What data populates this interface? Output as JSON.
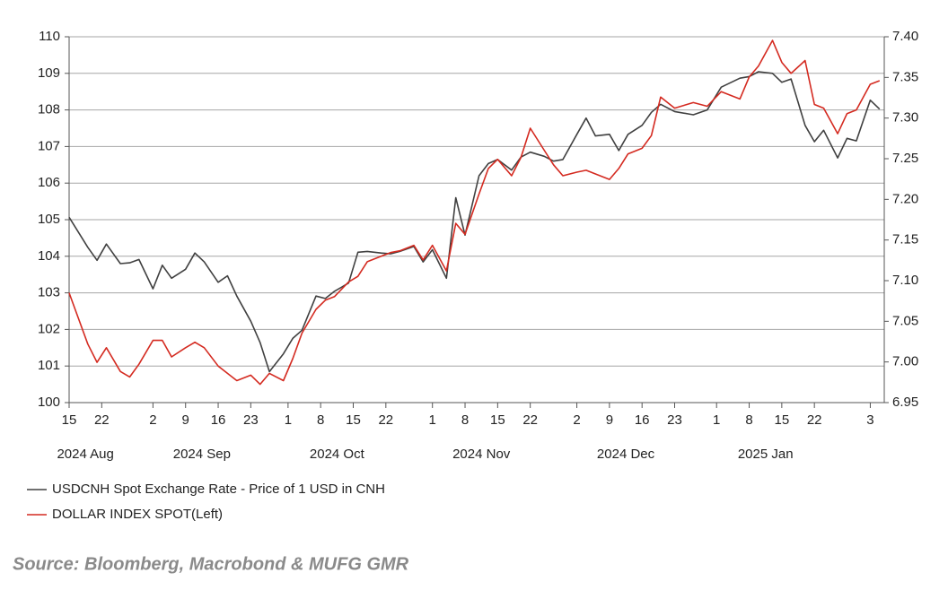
{
  "chart_data": {
    "type": "line",
    "x": [
      "2024-08-15",
      "2024-08-19",
      "2024-08-21",
      "2024-08-23",
      "2024-08-26",
      "2024-08-28",
      "2024-08-30",
      "2024-09-02",
      "2024-09-04",
      "2024-09-06",
      "2024-09-09",
      "2024-09-11",
      "2024-09-13",
      "2024-09-16",
      "2024-09-18",
      "2024-09-20",
      "2024-09-23",
      "2024-09-25",
      "2024-09-27",
      "2024-09-30",
      "2024-10-02",
      "2024-10-04",
      "2024-10-07",
      "2024-10-09",
      "2024-10-11",
      "2024-10-14",
      "2024-10-16",
      "2024-10-18",
      "2024-10-21",
      "2024-10-23",
      "2024-10-25",
      "2024-10-28",
      "2024-10-30",
      "2024-11-01",
      "2024-11-04",
      "2024-11-06",
      "2024-11-08",
      "2024-11-11",
      "2024-11-13",
      "2024-11-15",
      "2024-11-18",
      "2024-11-20",
      "2024-11-22",
      "2024-11-25",
      "2024-11-27",
      "2024-11-29",
      "2024-12-02",
      "2024-12-04",
      "2024-12-06",
      "2024-12-09",
      "2024-12-11",
      "2024-12-13",
      "2024-12-16",
      "2024-12-18",
      "2024-12-20",
      "2024-12-23",
      "2024-12-27",
      "2024-12-30",
      "2025-01-02",
      "2025-01-06",
      "2025-01-08",
      "2025-01-10",
      "2025-01-13",
      "2025-01-15",
      "2025-01-17",
      "2025-01-20",
      "2025-01-22",
      "2025-01-24",
      "2025-01-27",
      "2025-01-29",
      "2025-01-31",
      "2025-02-03",
      "2025-02-05"
    ],
    "series": [
      {
        "name": "USDCNH Spot Exchange Rate - Price of 1 USD in CNH",
        "color": "#404040",
        "axis": "y2",
        "values": [
          7.178,
          7.141,
          7.125,
          7.145,
          7.121,
          7.122,
          7.126,
          7.09,
          7.119,
          7.103,
          7.114,
          7.134,
          7.123,
          7.098,
          7.106,
          7.081,
          7.05,
          7.024,
          6.988,
          7.01,
          7.029,
          7.039,
          7.081,
          7.078,
          7.087,
          7.097,
          7.135,
          7.136,
          7.134,
          7.133,
          7.136,
          7.142,
          7.123,
          7.138,
          7.103,
          7.202,
          7.156,
          7.229,
          7.244,
          7.249,
          7.236,
          7.252,
          7.258,
          7.253,
          7.247,
          7.249,
          7.28,
          7.3,
          7.278,
          7.28,
          7.26,
          7.28,
          7.291,
          7.307,
          7.317,
          7.308,
          7.304,
          7.31,
          7.338,
          7.349,
          7.351,
          7.357,
          7.355,
          7.344,
          7.348,
          7.291,
          7.271,
          7.285,
          7.251,
          7.275,
          7.272,
          7.322,
          7.311
        ]
      },
      {
        "name": "DOLLAR INDEX SPOT(Left)",
        "color": "#d42a20",
        "values": [
          103.0,
          101.6,
          101.1,
          101.5,
          100.85,
          100.7,
          101.05,
          101.7,
          101.7,
          101.25,
          101.5,
          101.65,
          101.5,
          101.0,
          100.8,
          100.6,
          100.75,
          100.5,
          100.8,
          100.6,
          101.2,
          101.9,
          102.55,
          102.8,
          102.9,
          103.3,
          103.45,
          103.85,
          104.0,
          104.1,
          104.15,
          104.3,
          103.9,
          104.3,
          103.6,
          104.9,
          104.6,
          105.7,
          106.4,
          106.65,
          106.2,
          106.7,
          107.5,
          106.9,
          106.5,
          106.2,
          106.3,
          106.35,
          106.25,
          106.1,
          106.4,
          106.8,
          106.95,
          107.3,
          108.35,
          108.05,
          108.2,
          108.1,
          108.5,
          108.3,
          108.9,
          109.2,
          109.9,
          109.3,
          109.0,
          109.35,
          108.15,
          108.05,
          107.35,
          107.9,
          108.0,
          108.7,
          108.8
        ]
      }
    ],
    "xlim": [
      "2024-08-15",
      "2025-02-06"
    ],
    "xticks": [
      {
        "value": "2024-08-15",
        "label": "15"
      },
      {
        "value": "2024-08-22",
        "label": "22"
      },
      {
        "value": "2024-09-02",
        "label": "2"
      },
      {
        "value": "2024-09-09",
        "label": "9"
      },
      {
        "value": "2024-09-16",
        "label": "16"
      },
      {
        "value": "2024-09-23",
        "label": "23"
      },
      {
        "value": "2024-10-01",
        "label": "1"
      },
      {
        "value": "2024-10-08",
        "label": "8"
      },
      {
        "value": "2024-10-15",
        "label": "15"
      },
      {
        "value": "2024-10-22",
        "label": "22"
      },
      {
        "value": "2024-11-01",
        "label": "1"
      },
      {
        "value": "2024-11-08",
        "label": "8"
      },
      {
        "value": "2024-11-15",
        "label": "15"
      },
      {
        "value": "2024-11-22",
        "label": "22"
      },
      {
        "value": "2024-12-02",
        "label": "2"
      },
      {
        "value": "2024-12-09",
        "label": "9"
      },
      {
        "value": "2024-12-16",
        "label": "16"
      },
      {
        "value": "2024-12-23",
        "label": "23"
      },
      {
        "value": "2025-01-01",
        "label": "1"
      },
      {
        "value": "2025-01-08",
        "label": "8"
      },
      {
        "value": "2025-01-15",
        "label": "15"
      },
      {
        "value": "2025-01-22",
        "label": "22"
      },
      {
        "value": "2025-02-03",
        "label": "3"
      }
    ],
    "x_groups": [
      "2024 Aug",
      "2024 Sep",
      "2024 Oct",
      "2024 Nov",
      "2024 Dec",
      "2025 Jan"
    ],
    "ylim": [
      100,
      110
    ],
    "yticks": [
      100,
      101,
      102,
      103,
      104,
      105,
      106,
      107,
      108,
      109,
      110
    ],
    "y2lim": [
      6.95,
      7.4
    ],
    "y2ticks": [
      6.95,
      {
        "value": 7.0,
        "label": "7.00"
      },
      7.05,
      {
        "value": 7.1,
        "label": "7.10"
      },
      7.15,
      {
        "value": 7.2,
        "label": "7.20"
      },
      7.25,
      {
        "value": 7.3,
        "label": "7.30"
      },
      7.35,
      {
        "value": 7.4,
        "label": "7.40"
      }
    ],
    "grid": true,
    "source": "Source: Bloomberg, Macrobond & MUFG GMR"
  }
}
